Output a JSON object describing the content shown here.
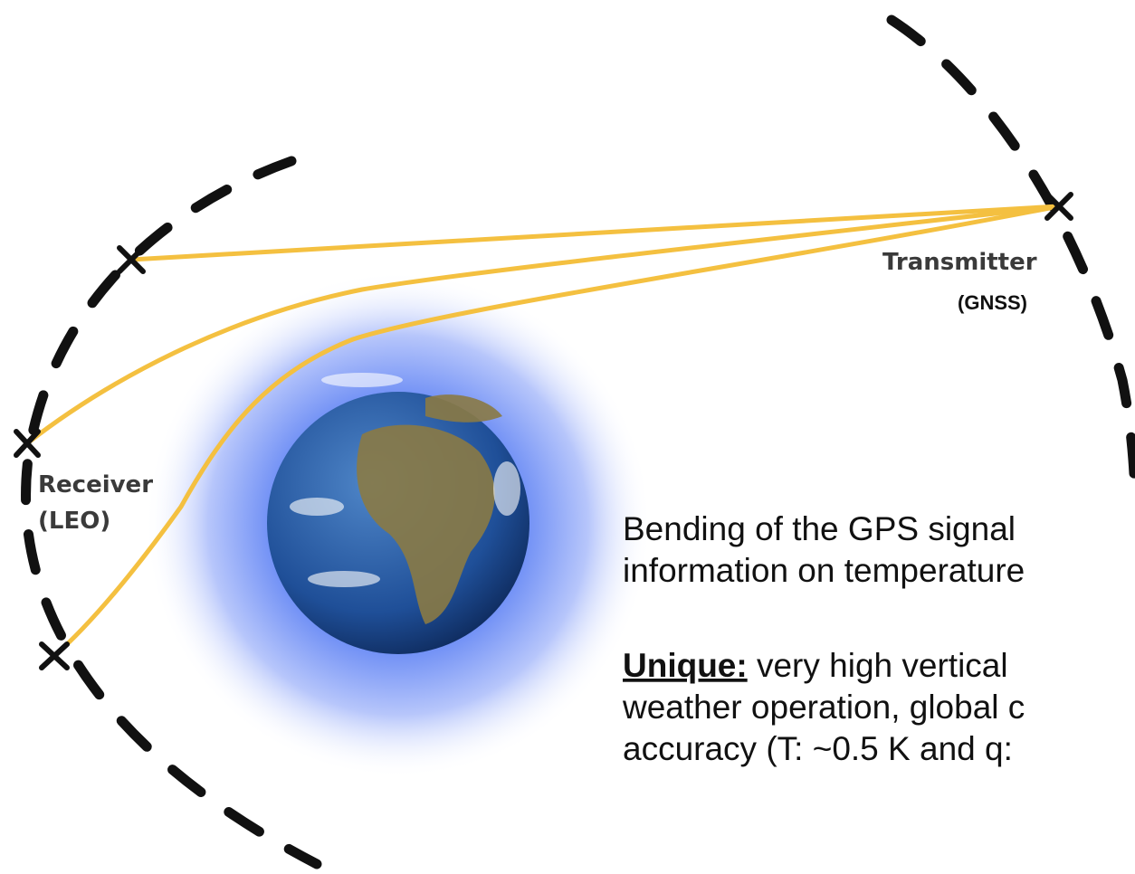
{
  "labels": {
    "transmitter": "Transmitter",
    "transmitter_type": "(GNSS)",
    "receiver": "Receiver",
    "receiver_type": "(LEO)"
  },
  "text": {
    "line1": "Bending of the GPS signal",
    "line2": "information on temperature",
    "unique_label": "Unique:",
    "line3": " very high vertical",
    "line4": "weather operation, global c",
    "line5": "accuracy (T: ~0.5 K and q:"
  }
}
